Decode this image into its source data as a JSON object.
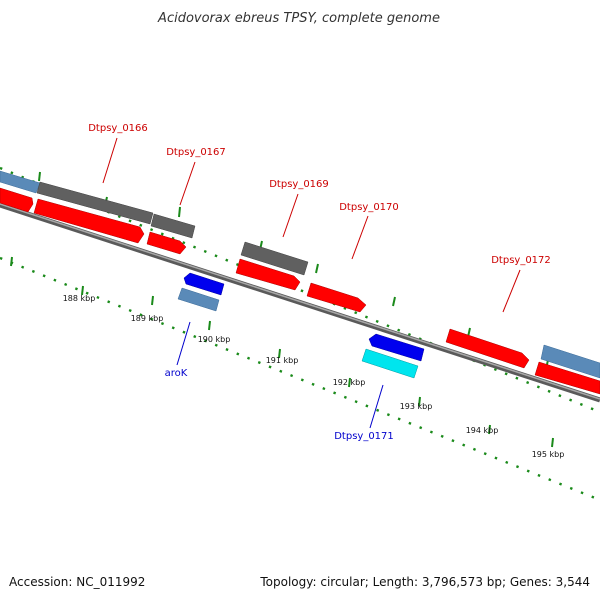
{
  "title": "Acidovorax ebreus TPSY, complete genome",
  "footer": {
    "accession": "Accession: NC_011992",
    "info": "Topology: circular; Length: 3,796,573 bp; Genes: 3,544"
  },
  "labels_top": [
    {
      "text": "Dtpsy_0166"
    },
    {
      "text": "Dtpsy_0167"
    },
    {
      "text": "Dtpsy_0169"
    },
    {
      "text": "Dtpsy_0170"
    },
    {
      "text": "Dtpsy_0172"
    }
  ],
  "labels_bottom": [
    {
      "text": "aroK"
    },
    {
      "text": "Dtpsy_0171"
    }
  ],
  "scale_ticks": [
    "188 kbp",
    "189 kbp",
    "190 kbp",
    "191 kbp",
    "192 kbp",
    "193 kbp",
    "194 kbp",
    "195 kbp"
  ],
  "colors": {
    "backbone": "#808080",
    "forward_cds": "#ff0000",
    "forward_gene": "#606060",
    "reverse_cds": "#0000ee",
    "reverse_gene": "#5a8ab8",
    "rna": "#00e5ee",
    "tick": "#1a8a1a",
    "label_forward": "#cc0000",
    "label_reverse": "#0000cc"
  }
}
